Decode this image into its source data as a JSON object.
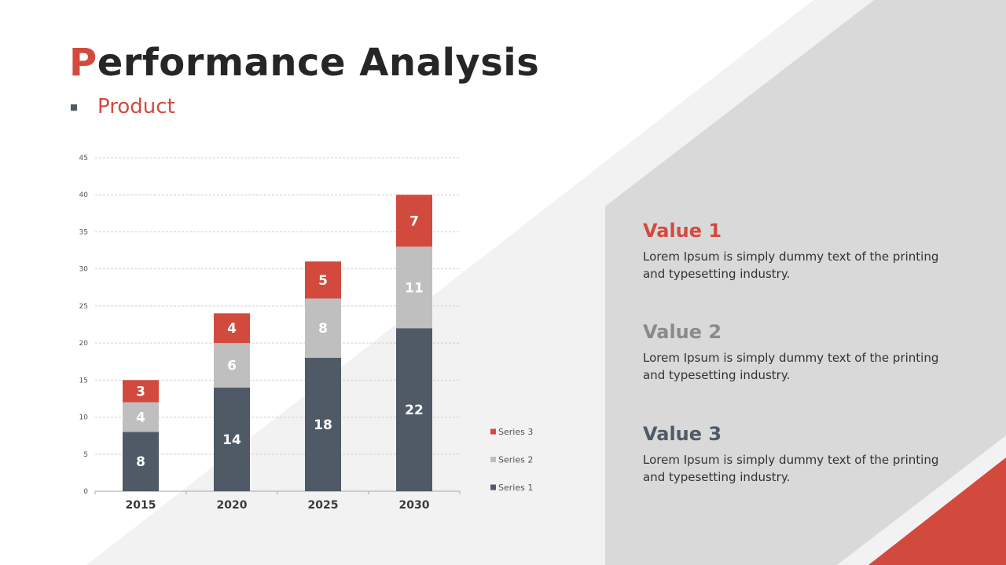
{
  "slide": {
    "title_first": "P",
    "title_rest": "erformance Analysis",
    "subtitle": "Product"
  },
  "colors": {
    "accent": "#d24a3e",
    "series1": "#4f5a66",
    "series2": "#bfbfbf",
    "series3": "#d24a3e",
    "panel_bg": "#d9d9d9",
    "band_bg": "#f2f2f2"
  },
  "chart_data": {
    "type": "bar",
    "stacked": true,
    "categories": [
      "2015",
      "2020",
      "2025",
      "2030"
    ],
    "series": [
      {
        "name": "Series 1",
        "values": [
          8,
          14,
          18,
          22
        ]
      },
      {
        "name": "Series 2",
        "values": [
          4,
          6,
          8,
          11
        ]
      },
      {
        "name": "Series 3",
        "values": [
          3,
          4,
          5,
          7
        ]
      }
    ],
    "ylim": [
      0,
      45
    ],
    "yticks": [
      0,
      5,
      10,
      15,
      20,
      25,
      30,
      35,
      40,
      45
    ],
    "grid": true,
    "legend": "right-bottom"
  },
  "values": [
    {
      "title": "Value 1",
      "text": "Lorem Ipsum is simply dummy text of the printing and typesetting industry."
    },
    {
      "title": "Value 2",
      "text": "Lorem Ipsum is simply dummy text of the printing and typesetting industry."
    },
    {
      "title": "Value 3",
      "text": "Lorem Ipsum is simply dummy text of the printing and typesetting industry."
    }
  ]
}
